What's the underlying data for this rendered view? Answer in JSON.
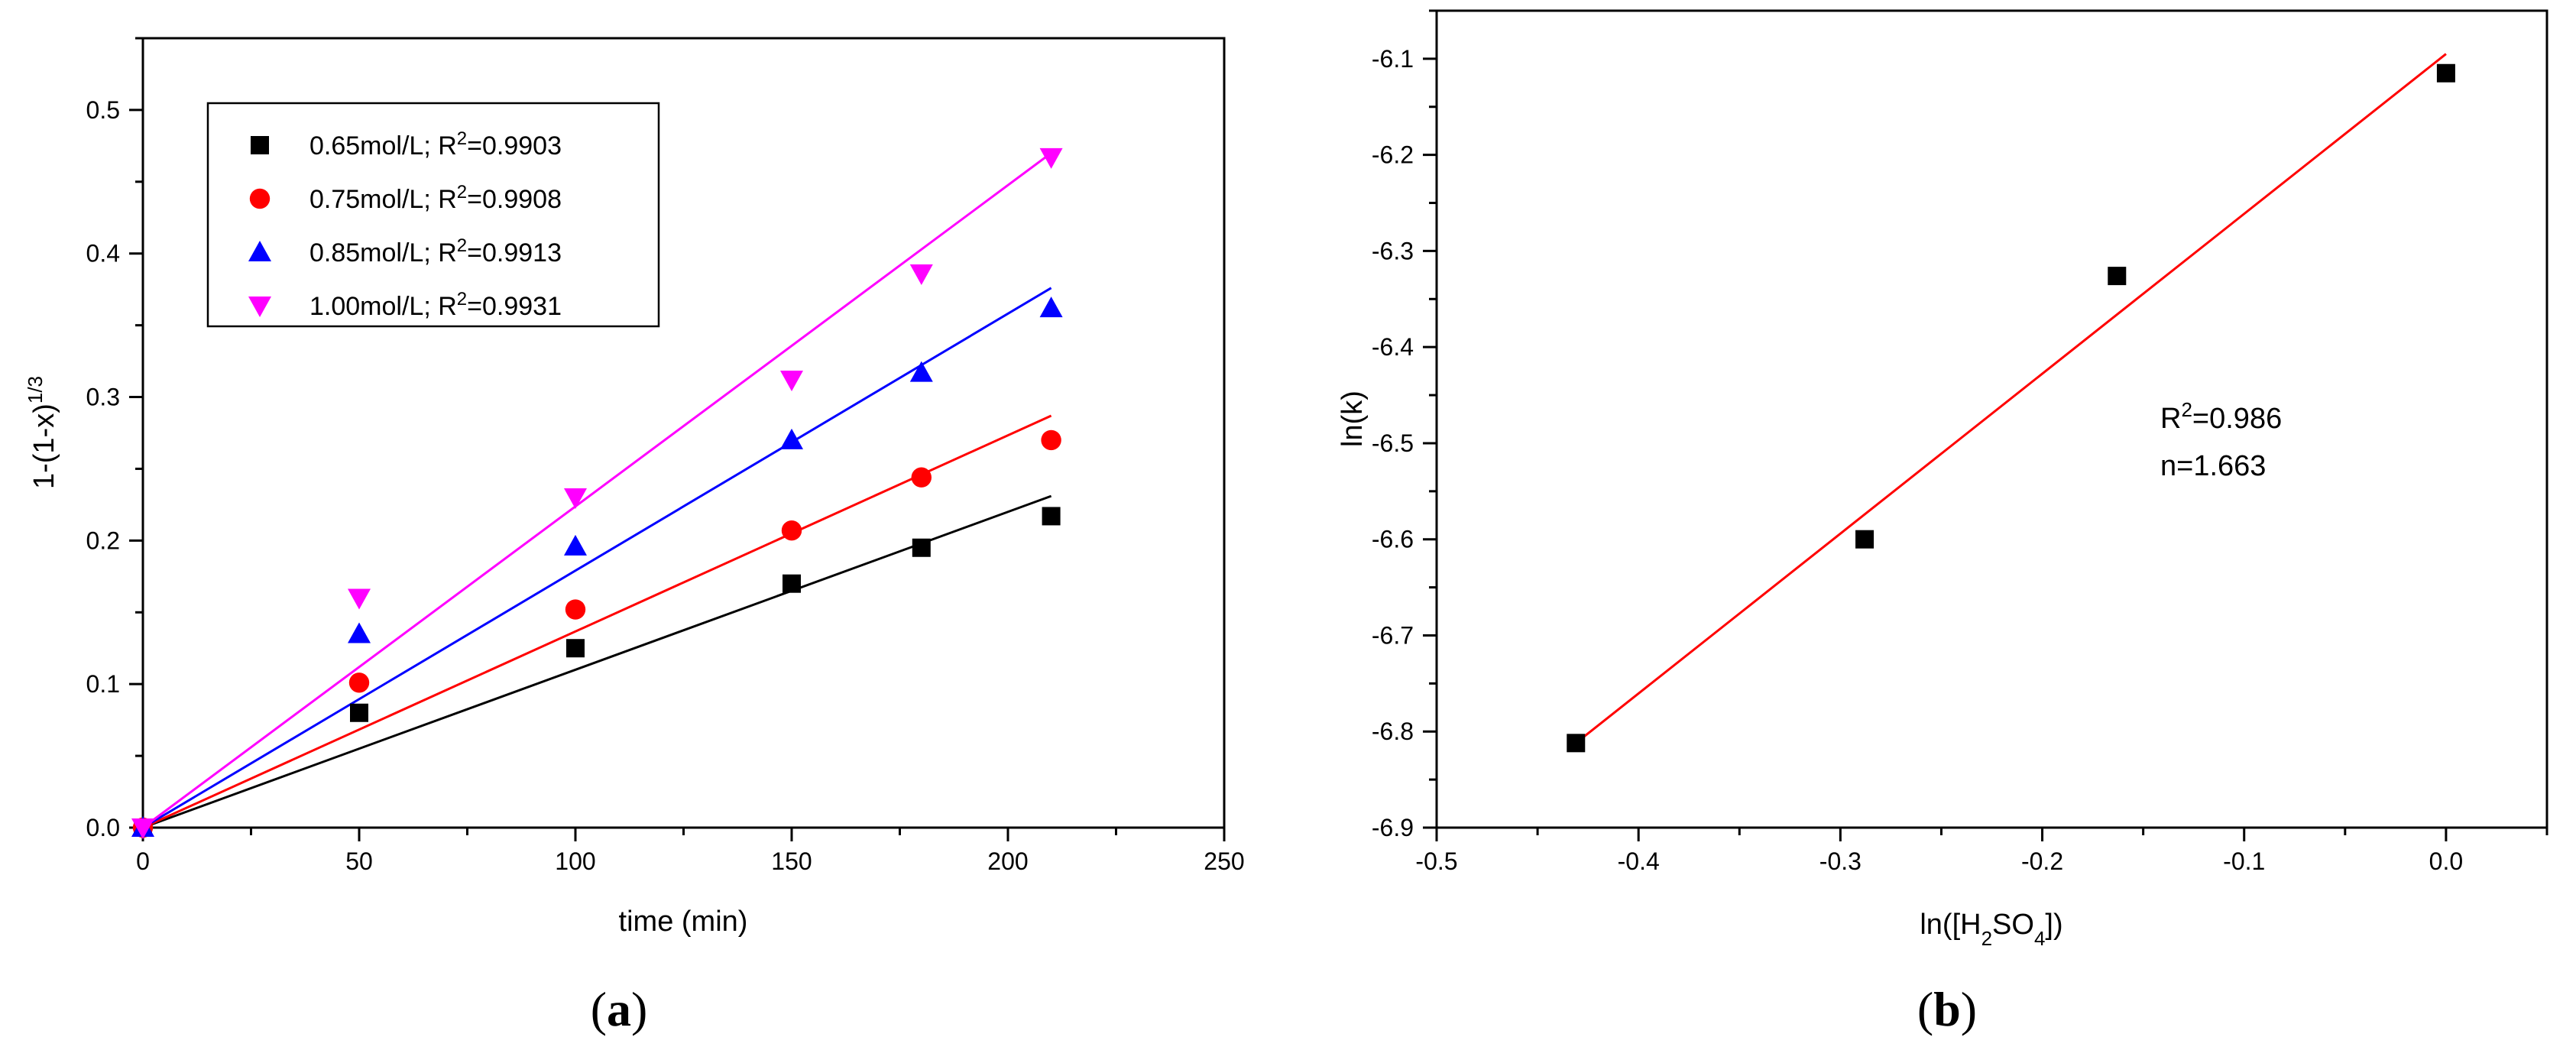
{
  "chart_data": [
    {
      "type": "scatter",
      "panel_label": {
        "open": "(",
        "letter": "a",
        "close": ")"
      },
      "xlabel": "time (min)",
      "ylabel": {
        "main": "1-(1-x)",
        "sup": "1/3"
      },
      "xlim": [
        0,
        250
      ],
      "ylim": [
        0,
        0.55
      ],
      "x_ticks": [
        "0",
        "50",
        "100",
        "150",
        "200",
        "250"
      ],
      "y_ticks": [
        "0.0",
        "0.1",
        "0.2",
        "0.3",
        "0.4",
        "0.5"
      ],
      "grid": false,
      "legend_position": "top-left",
      "x": [
        0,
        50,
        100,
        150,
        180,
        210
      ],
      "series": [
        {
          "name": "0.65mol/L; R",
          "r2": "=0.9903",
          "color": "#000000",
          "marker": "square",
          "values": [
            0,
            0.08,
            0.125,
            0.17,
            0.195,
            0.217
          ],
          "fit_end": 0.231
        },
        {
          "name": "0.75mol/L; R",
          "r2": "=0.9908",
          "color": "#ff0000",
          "marker": "circle",
          "values": [
            0,
            0.101,
            0.152,
            0.207,
            0.244,
            0.27
          ],
          "fit_end": 0.287
        },
        {
          "name": "0.85mol/L; R",
          "r2": "=0.9913",
          "color": "#0000ff",
          "marker": "triangle-up",
          "values": [
            0,
            0.135,
            0.196,
            0.27,
            0.317,
            0.362
          ],
          "fit_end": 0.376
        },
        {
          "name": "1.00mol/L; R",
          "r2": "=0.9931",
          "color": "#ff00ff",
          "marker": "triangle-down",
          "values": [
            0,
            0.16,
            0.23,
            0.312,
            0.386,
            0.467
          ],
          "fit_end": 0.47
        }
      ]
    },
    {
      "type": "scatter",
      "panel_label": {
        "open": "(",
        "letter": "b",
        "close": ")"
      },
      "xlabel": {
        "pre": "ln([H",
        "sub1": "2",
        "mid": "SO",
        "sub2": "4",
        "post": "])"
      },
      "ylabel": "ln(k)",
      "xlim": [
        -0.5,
        0.05
      ],
      "ylim": [
        -6.9,
        -6.05
      ],
      "x_ticks": [
        "-0.5",
        "-0.4",
        "-0.3",
        "-0.2",
        "-0.1",
        "0.0"
      ],
      "y_ticks": [
        "-6.9",
        "-6.8",
        "-6.7",
        "-6.6",
        "-6.5",
        "-6.4",
        "-6.3",
        "-6.2",
        "-6.1"
      ],
      "grid": false,
      "x": [
        -0.431,
        -0.288,
        -0.163,
        0.0
      ],
      "y": [
        -6.812,
        -6.6,
        -6.326,
        -6.115
      ],
      "fit": {
        "x": [
          -0.431,
          0.0
        ],
        "y": [
          -6.812,
          -6.095
        ],
        "color": "#ff0000"
      },
      "annotations": {
        "r2_pre": "R",
        "r2_sup": "2",
        "r2_post": "=0.986",
        "n": "n=1.663"
      }
    }
  ]
}
